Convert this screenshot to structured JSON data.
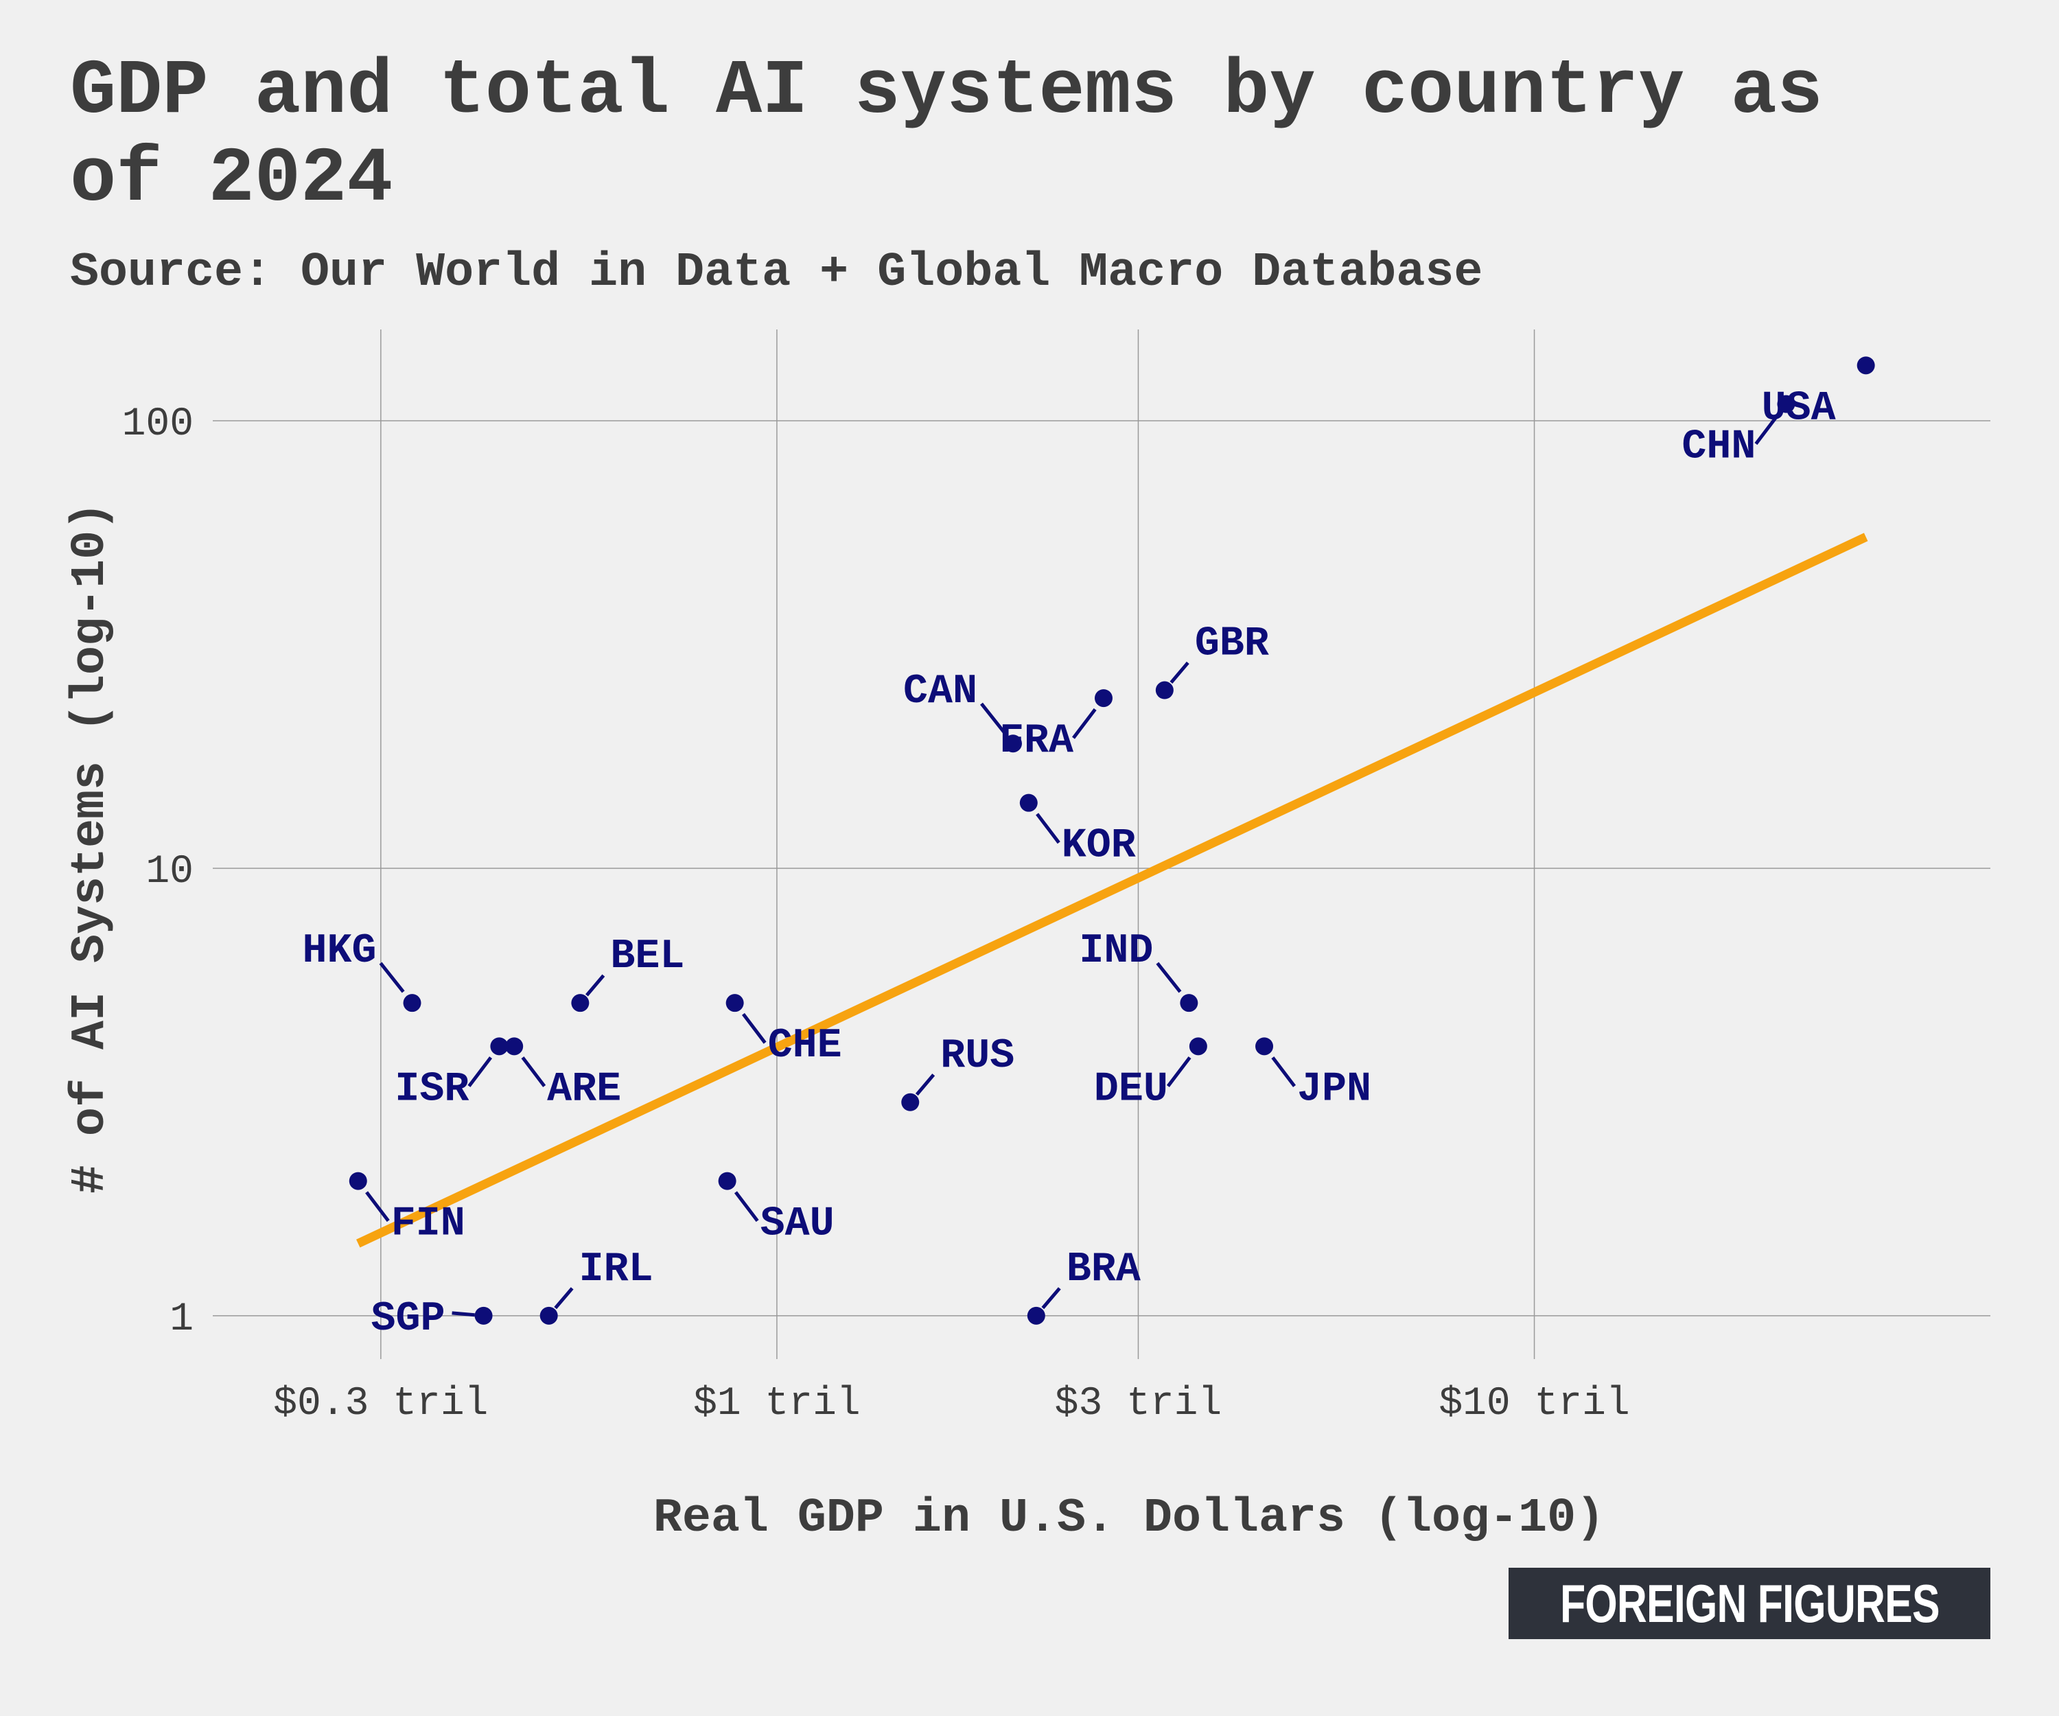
{
  "title": "GDP and total AI systems by country as of 2024",
  "subtitle": "Source: Our World in Data + Global Macro Database",
  "brand": "FOREIGN FIGURES",
  "colors": {
    "background": "#f0f0f0",
    "point": "#0d0d78",
    "trend_line": "#f7a310",
    "grid": "#9a9a9a",
    "text": "#3d3d3d",
    "brand_bg": "#2e323b"
  },
  "chart_data": {
    "type": "scatter",
    "xlabel": "Real GDP in U.S. Dollars (log-10)",
    "ylabel": "# of AI Systems (log-10)",
    "x_scale": "log10",
    "y_scale": "log10",
    "x_unit": "trillion USD",
    "xlim": [
      0.18,
      40
    ],
    "ylim": [
      0.8,
      160
    ],
    "x_ticks": [
      {
        "value": 0.3,
        "label": "$0.3 tril"
      },
      {
        "value": 1,
        "label": "$1 tril"
      },
      {
        "value": 3,
        "label": "$3 tril"
      },
      {
        "value": 10,
        "label": "$10 tril"
      }
    ],
    "y_ticks": [
      {
        "value": 1,
        "label": "1"
      },
      {
        "value": 10,
        "label": "10"
      },
      {
        "value": 100,
        "label": "100"
      }
    ],
    "grid": true,
    "legend": "none",
    "points": [
      {
        "label": "USA",
        "x": 27.4,
        "y": 133,
        "label_dir": "sw",
        "leader": false
      },
      {
        "label": "CHN",
        "x": 21.5,
        "y": 109,
        "label_dir": "sw",
        "leader": true
      },
      {
        "label": "GBR",
        "x": 3.25,
        "y": 25,
        "label_dir": "ne",
        "leader": true
      },
      {
        "label": "FRA",
        "x": 2.7,
        "y": 24,
        "label_dir": "sw",
        "leader": true
      },
      {
        "label": "CAN",
        "x": 2.05,
        "y": 19,
        "label_dir": "nw",
        "leader": true
      },
      {
        "label": "KOR",
        "x": 2.15,
        "y": 14,
        "label_dir": "se",
        "leader": true
      },
      {
        "label": "IND",
        "x": 3.5,
        "y": 5,
        "label_dir": "nw",
        "leader": true
      },
      {
        "label": "DEU",
        "x": 3.6,
        "y": 4,
        "label_dir": "sw",
        "leader": true
      },
      {
        "label": "JPN",
        "x": 4.4,
        "y": 4,
        "label_dir": "se",
        "leader": true
      },
      {
        "label": "RUS",
        "x": 1.5,
        "y": 3,
        "label_dir": "ne",
        "leader": true
      },
      {
        "label": "BRA",
        "x": 2.2,
        "y": 1,
        "label_dir": "ne",
        "leader": true
      },
      {
        "label": "CHE",
        "x": 0.88,
        "y": 5,
        "label_dir": "se",
        "leader": true
      },
      {
        "label": "SAU",
        "x": 0.86,
        "y": 2,
        "label_dir": "se",
        "leader": true
      },
      {
        "label": "BEL",
        "x": 0.55,
        "y": 5,
        "label_dir": "ne",
        "leader": true
      },
      {
        "label": "ARE",
        "x": 0.45,
        "y": 4,
        "label_dir": "se",
        "leader": true
      },
      {
        "label": "ISR",
        "x": 0.43,
        "y": 4,
        "label_dir": "sw",
        "leader": true
      },
      {
        "label": "HKG",
        "x": 0.33,
        "y": 5,
        "label_dir": "nw",
        "leader": true
      },
      {
        "label": "FIN",
        "x": 0.28,
        "y": 2,
        "label_dir": "se",
        "leader": true
      },
      {
        "label": "SGP",
        "x": 0.41,
        "y": 1,
        "label_dir": "w",
        "leader": true
      },
      {
        "label": "IRL",
        "x": 0.5,
        "y": 1,
        "label_dir": "ne",
        "leader": true
      }
    ],
    "trend_line": {
      "x": [
        0.28,
        27.4
      ],
      "y": [
        1.45,
        55
      ]
    }
  }
}
